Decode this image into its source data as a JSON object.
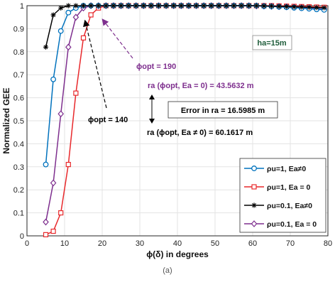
{
  "chart_data": {
    "type": "line",
    "xlabel": "ϕ(δ) in degrees",
    "ylabel": "Normalized GEE",
    "xlim": [
      0,
      80
    ],
    "ylim": [
      0,
      1
    ],
    "xticks": [
      0,
      10,
      20,
      30,
      40,
      50,
      60,
      70,
      80
    ],
    "yticks": [
      0,
      0.1,
      0.2,
      0.3,
      0.4,
      0.5,
      0.6,
      0.7,
      0.8,
      0.9,
      1
    ],
    "grid": true,
    "legend_position": "bottom-right",
    "series": [
      {
        "name": "ρu=1, Ea≠0",
        "color": "#0072BD",
        "marker": "circle",
        "x": [
          5,
          7,
          9,
          11,
          13,
          15,
          17,
          19,
          21,
          23,
          25,
          27,
          29,
          31,
          33,
          35,
          37,
          39,
          41,
          43,
          45,
          47,
          49,
          51,
          53,
          55,
          57,
          59,
          61,
          63,
          65,
          67,
          69,
          71,
          73,
          75,
          77,
          79
        ],
        "y": [
          0.31,
          0.68,
          0.89,
          0.97,
          0.99,
          1.0,
          1.0,
          1.0,
          1.0,
          1.0,
          1.0,
          1.0,
          1.0,
          1.0,
          1.0,
          1.0,
          1.0,
          1.0,
          1.0,
          1.0,
          1.0,
          1.0,
          1.0,
          1.0,
          1.0,
          1.0,
          1.0,
          1.0,
          1.0,
          0.998,
          0.997,
          0.995,
          0.993,
          0.991,
          0.989,
          0.987,
          0.984,
          0.982
        ]
      },
      {
        "name": "ρu=1, Ea = 0",
        "color": "#E8282B",
        "marker": "square",
        "x": [
          5,
          7,
          9,
          11,
          13,
          15,
          17,
          19,
          21,
          23,
          25,
          27,
          29,
          31,
          33,
          35,
          37,
          39,
          41,
          43,
          45,
          47,
          49,
          51,
          53,
          55,
          57,
          59,
          61,
          63,
          65,
          67,
          69,
          71,
          73,
          75,
          77,
          79
        ],
        "y": [
          0.005,
          0.02,
          0.1,
          0.31,
          0.62,
          0.86,
          0.96,
          0.99,
          1.0,
          1.0,
          1.0,
          1.0,
          1.0,
          1.0,
          1.0,
          1.0,
          1.0,
          1.0,
          1.0,
          1.0,
          1.0,
          1.0,
          1.0,
          1.0,
          1.0,
          1.0,
          1.0,
          1.0,
          1.0,
          1.0,
          1.0,
          0.999,
          0.998,
          0.997,
          0.996,
          0.995,
          0.994,
          0.993
        ]
      },
      {
        "name": "ρu=0.1, Ea≠0",
        "color": "#000000",
        "marker": "star",
        "x": [
          5,
          7,
          9,
          11,
          13,
          15,
          17,
          19,
          21,
          23,
          25,
          27,
          29,
          31,
          33,
          35,
          37,
          39,
          41,
          43,
          45,
          47,
          49,
          51,
          53,
          55,
          57,
          59,
          61,
          63,
          65,
          67,
          69,
          71,
          73,
          75,
          77,
          79
        ],
        "y": [
          0.82,
          0.96,
          0.99,
          1.0,
          1.0,
          1.0,
          1.0,
          1.0,
          1.0,
          1.0,
          1.0,
          1.0,
          1.0,
          1.0,
          1.0,
          1.0,
          1.0,
          1.0,
          1.0,
          1.0,
          1.0,
          1.0,
          1.0,
          1.0,
          1.0,
          1.0,
          1.0,
          1.0,
          1.0,
          0.999,
          0.998,
          0.997,
          0.996,
          0.995,
          0.994,
          0.993,
          0.992,
          0.991
        ]
      },
      {
        "name": "ρu=0.1, Ea = 0",
        "color": "#7E2F8E",
        "marker": "diamond",
        "x": [
          5,
          7,
          9,
          11,
          13,
          15,
          17,
          19,
          21,
          23,
          25,
          27,
          29,
          31,
          33,
          35,
          37,
          39,
          41,
          43,
          45,
          47,
          49,
          51,
          53,
          55,
          57,
          59,
          61,
          63,
          65,
          67,
          69,
          71,
          73,
          75,
          77,
          79
        ],
        "y": [
          0.06,
          0.23,
          0.53,
          0.82,
          0.95,
          0.99,
          1.0,
          1.0,
          1.0,
          1.0,
          1.0,
          1.0,
          1.0,
          1.0,
          1.0,
          1.0,
          1.0,
          1.0,
          1.0,
          1.0,
          1.0,
          1.0,
          1.0,
          1.0,
          1.0,
          1.0,
          1.0,
          1.0,
          0.999,
          0.998,
          0.997,
          0.996,
          0.995,
          0.993,
          0.991,
          0.989,
          0.987,
          0.985
        ]
      }
    ],
    "annotations": {
      "height_box": "ha=15m",
      "phi_opt_19": "ϕopt = 190",
      "ra_ea0": "ra (ϕopt, Ea = 0) = 43.5632 m",
      "error_box": "Error in ra = 16.5985 m",
      "ra_eanot0": "ra (ϕopt, Ea ≠ 0) = 60.1617 m",
      "phi_opt_14": "ϕopt = 140"
    },
    "caption": "(a)"
  }
}
